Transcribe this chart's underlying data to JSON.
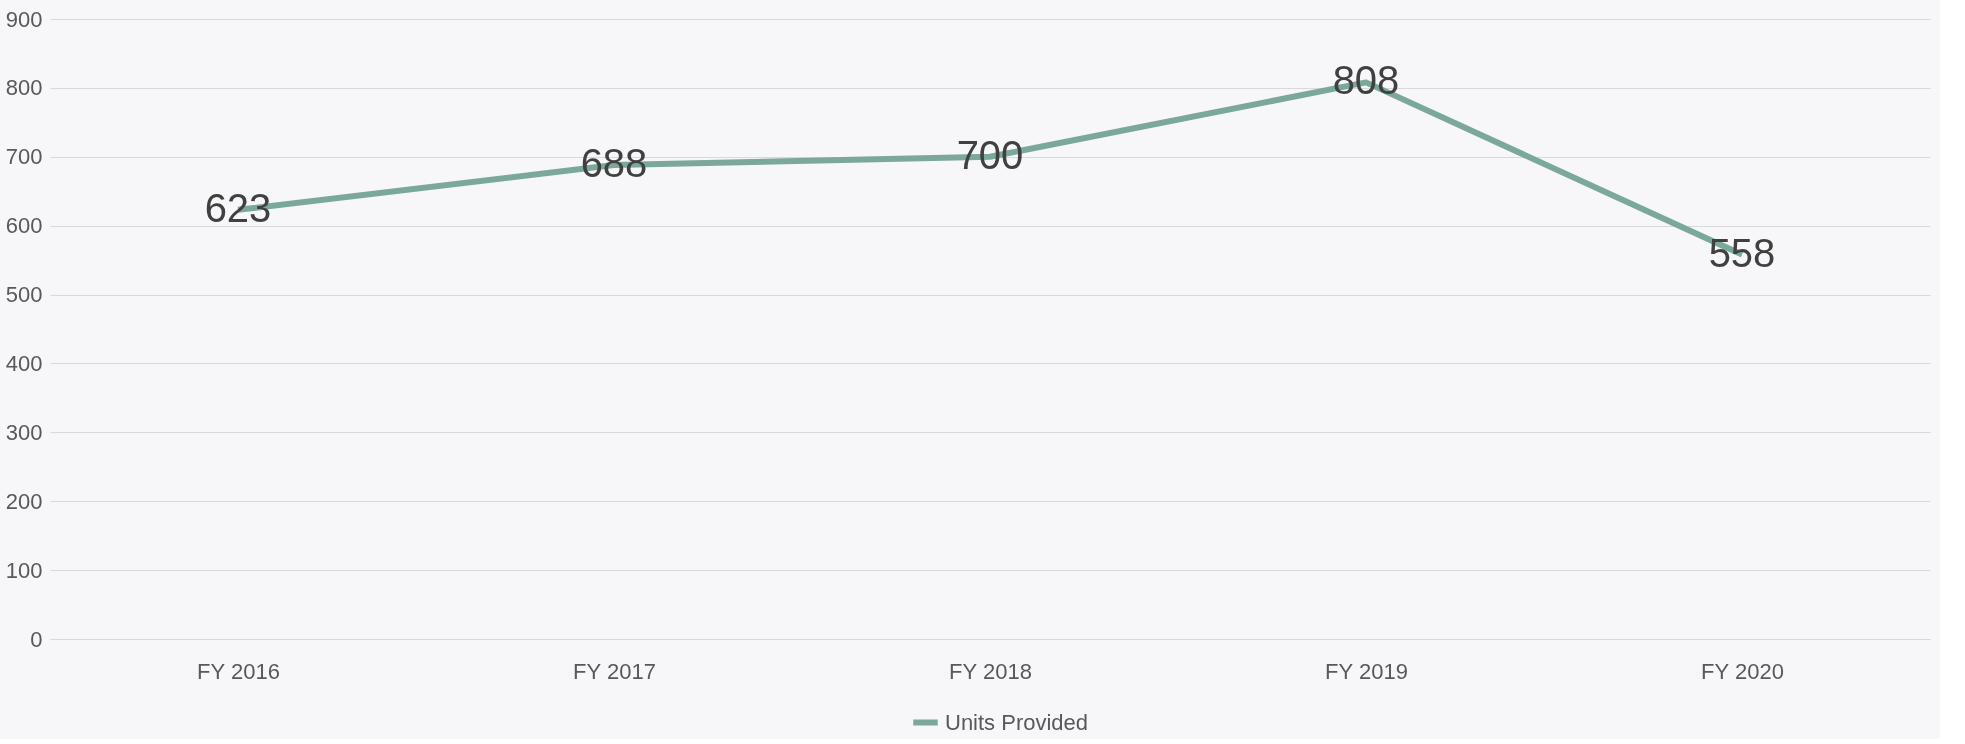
{
  "chart_data": {
    "type": "line",
    "categories": [
      "FY 2016",
      "FY 2017",
      "FY 2018",
      "FY 2019",
      "FY 2020"
    ],
    "series": [
      {
        "name": "Units Provided",
        "color": "#7aa89a",
        "values": [
          623,
          688,
          700,
          808,
          558
        ]
      }
    ],
    "ylim": [
      0,
      900
    ],
    "yticks": [
      0,
      100,
      200,
      300,
      400,
      500,
      600,
      700,
      800,
      900
    ],
    "grid": "y",
    "legend": "bottom",
    "data_labels": true,
    "marker": "none",
    "line_style": "solid"
  }
}
